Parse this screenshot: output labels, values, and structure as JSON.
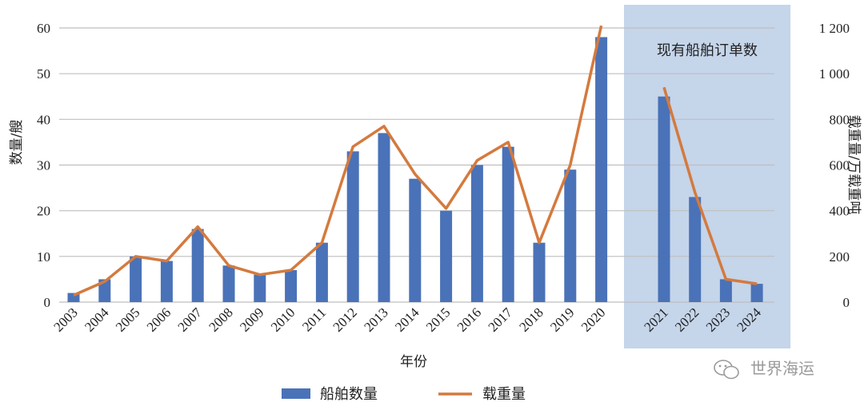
{
  "chart_data": {
    "type": "bar+line",
    "categories": [
      "2003",
      "2004",
      "2005",
      "2006",
      "2007",
      "2008",
      "2009",
      "2010",
      "2011",
      "2012",
      "2013",
      "2014",
      "2015",
      "2016",
      "2017",
      "2018",
      "2019",
      "2020",
      "2021",
      "2022",
      "2023",
      "2024"
    ],
    "series": [
      {
        "name": "船舶数量",
        "type": "bar",
        "axis": "left",
        "color": "#4a72b8",
        "values": [
          2,
          5,
          10,
          9,
          16,
          8,
          6,
          7,
          13,
          33,
          37,
          27,
          20,
          30,
          34,
          13,
          29,
          58,
          45,
          23,
          5,
          4
        ]
      },
      {
        "name": "载重量",
        "type": "line",
        "axis": "right",
        "color": "#d47a3e",
        "values": [
          30,
          90,
          200,
          180,
          330,
          160,
          120,
          140,
          260,
          680,
          770,
          560,
          410,
          620,
          700,
          260,
          600,
          1210,
          940,
          480,
          100,
          80
        ]
      }
    ],
    "xlabel": "年份",
    "ylabel": "数量/艘",
    "y2label": "载重量/万载重吨",
    "ylim": [
      0,
      60
    ],
    "y2lim": [
      0,
      1200
    ],
    "yticks": [
      "0",
      "10",
      "20",
      "30",
      "40",
      "50",
      "60"
    ],
    "y2ticks": [
      "0",
      "200",
      "400",
      "600",
      "800",
      "1 000",
      "1 200"
    ],
    "grid": true,
    "legend_position": "bottom",
    "highlight_region": {
      "label": "现有船舶订单数",
      "from": "2021",
      "to": "2024",
      "color": "#c5d5ea"
    }
  },
  "watermark": {
    "text": "世界海运"
  }
}
